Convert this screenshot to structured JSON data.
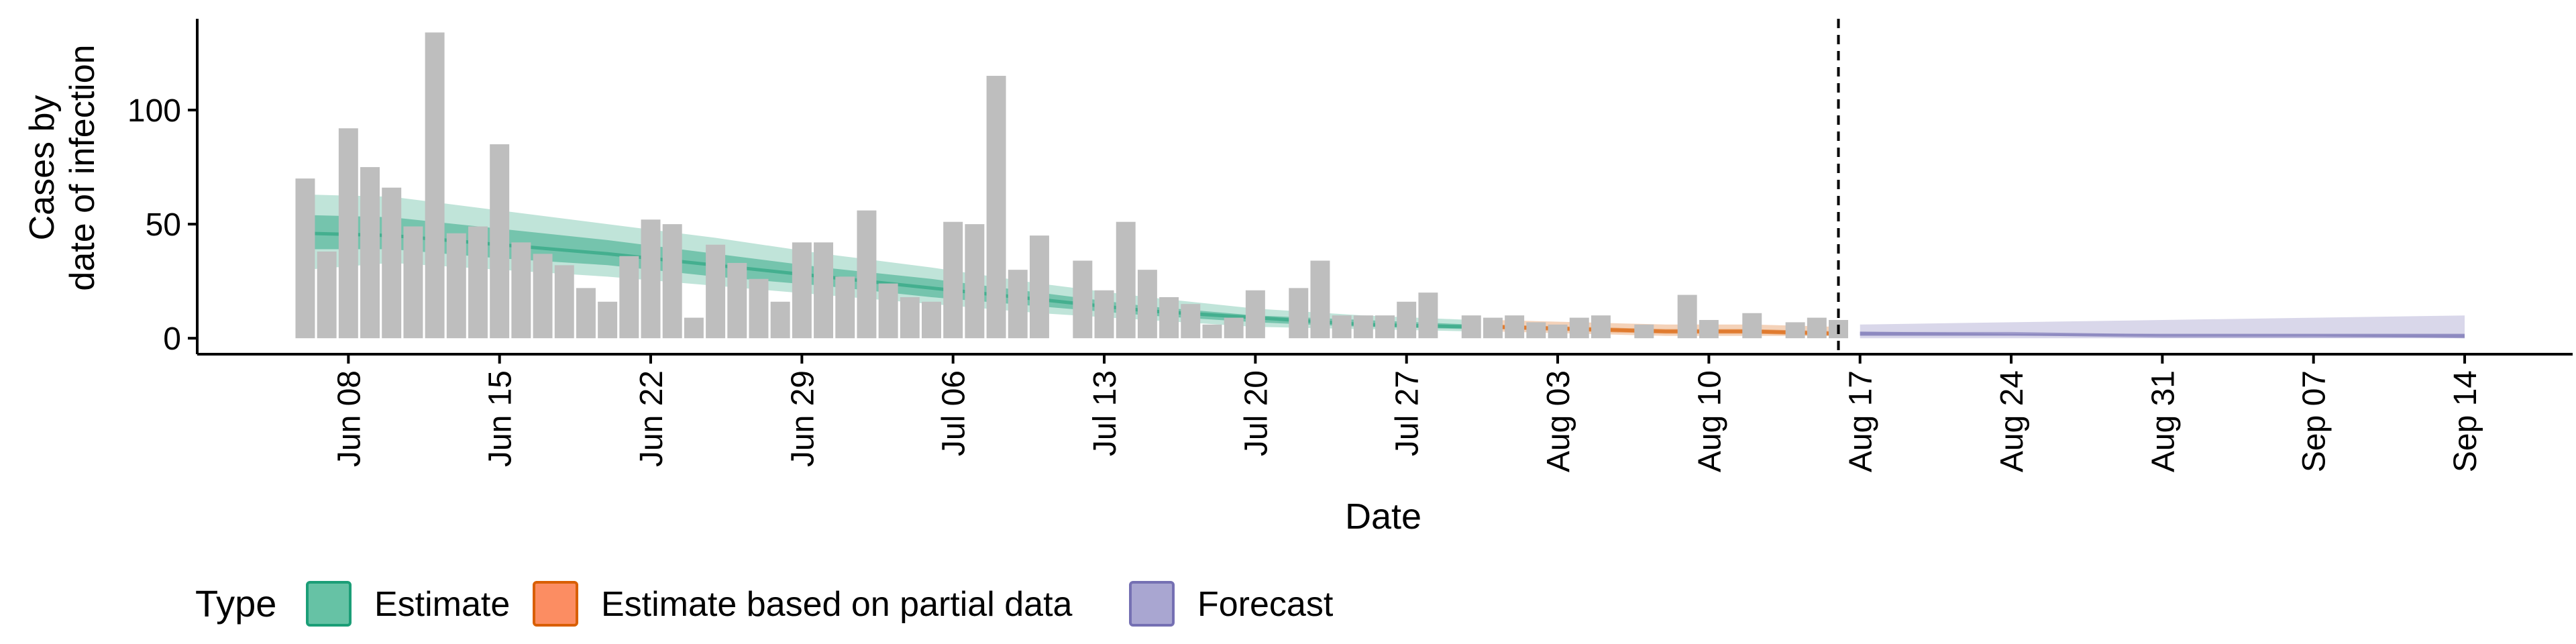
{
  "chart_data": {
    "type": "bar",
    "xlabel": "Date",
    "ylabel_lines": [
      "Cases by",
      "date of infection"
    ],
    "y_ticks": [
      0,
      50,
      100
    ],
    "ylim": [
      -7,
      140
    ],
    "x_range": [
      "2020-06-01",
      "2020-09-19"
    ],
    "x_ticks": [
      {
        "date": "2020-06-08",
        "label": "Jun 08"
      },
      {
        "date": "2020-06-15",
        "label": "Jun 15"
      },
      {
        "date": "2020-06-22",
        "label": "Jun 22"
      },
      {
        "date": "2020-06-29",
        "label": "Jun 29"
      },
      {
        "date": "2020-07-06",
        "label": "Jul 06"
      },
      {
        "date": "2020-07-13",
        "label": "Jul 13"
      },
      {
        "date": "2020-07-20",
        "label": "Jul 20"
      },
      {
        "date": "2020-07-27",
        "label": "Jul 27"
      },
      {
        "date": "2020-08-03",
        "label": "Aug 03"
      },
      {
        "date": "2020-08-10",
        "label": "Aug 10"
      },
      {
        "date": "2020-08-17",
        "label": "Aug 17"
      },
      {
        "date": "2020-08-24",
        "label": "Aug 24"
      },
      {
        "date": "2020-08-31",
        "label": "Aug 31"
      },
      {
        "date": "2020-09-07",
        "label": "Sep 07"
      },
      {
        "date": "2020-09-14",
        "label": "Sep 14"
      }
    ],
    "reported_cases": {
      "start_date": "2020-06-06",
      "values": [
        70,
        38,
        92,
        75,
        66,
        49,
        134,
        46,
        49,
        85,
        42,
        37,
        32,
        22,
        16,
        36,
        52,
        50,
        9,
        41,
        33,
        26,
        16,
        42,
        42,
        27,
        56,
        24,
        18,
        16,
        51,
        50,
        115,
        30,
        45,
        0,
        34,
        21,
        51,
        30,
        18,
        15,
        6,
        9,
        21,
        0,
        22,
        34,
        10,
        10,
        10,
        16,
        20,
        0,
        10,
        9,
        10,
        7,
        6,
        9,
        10,
        0,
        6,
        0,
        19,
        8,
        0,
        11,
        0,
        7,
        9,
        8,
        0
      ]
    },
    "series": [
      {
        "name": "Estimate",
        "color": "#1b9e77",
        "x": [
          "2020-06-06",
          "2020-06-10",
          "2020-06-15",
          "2020-06-20",
          "2020-06-25",
          "2020-06-30",
          "2020-07-05",
          "2020-07-10",
          "2020-07-15",
          "2020-07-20",
          "2020-07-25",
          "2020-07-30"
        ],
        "median": [
          46,
          45,
          41,
          37,
          32,
          27,
          22,
          17,
          12,
          9,
          6,
          5
        ],
        "lower_50": [
          39,
          39,
          35,
          32,
          27,
          23,
          18,
          14,
          10,
          7,
          5,
          4
        ],
        "upper_50": [
          54,
          53,
          48,
          43,
          37,
          31,
          26,
          20,
          14,
          10,
          8,
          6
        ],
        "lower_90": [
          30,
          33,
          30,
          27,
          23,
          19,
          15,
          11,
          8,
          5,
          4,
          3
        ],
        "upper_90": [
          63,
          62,
          56,
          50,
          44,
          37,
          31,
          24,
          18,
          13,
          10,
          8
        ]
      },
      {
        "name": "Estimate based on partial data",
        "color": "#d95f02",
        "x": [
          "2020-07-31",
          "2020-08-04",
          "2020-08-08",
          "2020-08-12",
          "2020-08-16"
        ],
        "median": [
          5,
          4,
          3,
          3,
          2
        ],
        "lower_50": [
          4,
          3,
          2,
          2,
          1
        ],
        "upper_50": [
          6,
          5,
          4,
          4,
          3
        ],
        "lower_90": [
          3,
          2,
          1,
          1,
          1
        ],
        "upper_90": [
          8,
          7,
          6,
          6,
          5
        ]
      },
      {
        "name": "Forecast",
        "color": "#7570b3",
        "x": [
          "2020-08-17",
          "2020-08-24",
          "2020-08-31",
          "2020-09-07",
          "2020-09-14"
        ],
        "median": [
          2,
          2,
          1,
          1,
          1
        ],
        "lower_50": [
          1,
          1,
          1,
          1,
          0
        ],
        "upper_50": [
          3,
          2,
          2,
          2,
          2
        ],
        "lower_90": [
          0,
          0,
          0,
          0,
          0
        ],
        "upper_90": [
          6,
          7,
          8,
          9,
          10
        ]
      }
    ],
    "vline_date": "2020-08-16",
    "bar_color": "#bebebe",
    "legend": {
      "title": "Type",
      "position": "bottom",
      "items": [
        {
          "label": "Estimate",
          "fill": "#66c2a5",
          "stroke": "#1b9e77"
        },
        {
          "label": "Estimate based on partial data",
          "fill": "#fc8d62",
          "stroke": "#d95f02"
        },
        {
          "label": "Forecast",
          "fill": "#a9a6d1",
          "stroke": "#7570b3"
        }
      ]
    }
  }
}
